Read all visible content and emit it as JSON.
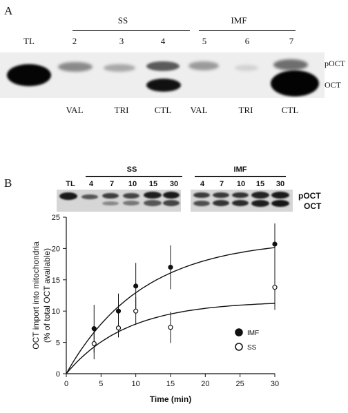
{
  "panel_a": {
    "letter": "A",
    "group_ss": "SS",
    "group_imf": "IMF",
    "lane_labels": [
      "TL",
      "2",
      "3",
      "4",
      "5",
      "6",
      "7"
    ],
    "treatments": [
      "VAL",
      "TRI",
      "CTL",
      "VAL",
      "TRI",
      "CTL"
    ],
    "band_labels": {
      "upper": "pOCT",
      "lower": "OCT"
    }
  },
  "panel_b": {
    "letter": "B",
    "gel": {
      "tl_label": "TL",
      "group_ss": "SS",
      "group_imf": "IMF",
      "lanes_ss": [
        "4",
        "7",
        "10",
        "15",
        "30"
      ],
      "lanes_imf": [
        "4",
        "7",
        "10",
        "15",
        "30"
      ],
      "band_labels": {
        "upper": "pOCT",
        "lower": "OCT"
      }
    }
  },
  "chart_data": {
    "type": "scatter",
    "title": "",
    "xlabel": "Time (min)",
    "ylabel_line1": "OCT import into mitochondria",
    "ylabel_line2": "(% of total OCT available)",
    "xlim": [
      0,
      30
    ],
    "ylim": [
      0,
      25
    ],
    "xticks": [
      "0",
      "5",
      "10",
      "15",
      "20",
      "25",
      "30"
    ],
    "yticks": [
      "0",
      "5",
      "10",
      "15",
      "20",
      "25"
    ],
    "legend_position": "right",
    "series": [
      {
        "name": "IMF",
        "marker": "filled",
        "x": [
          4,
          7.5,
          10,
          15,
          30
        ],
        "y": [
          7.2,
          10,
          14,
          17,
          20.7
        ],
        "err": [
          3.8,
          2.8,
          3.7,
          3.5,
          3.3
        ],
        "fit": {
          "amplitude": 21.5,
          "rate": 0.092
        }
      },
      {
        "name": "SS",
        "marker": "open",
        "x": [
          4,
          7.5,
          10,
          15,
          30
        ],
        "y": [
          4.8,
          7.3,
          10,
          7.4,
          13.8
        ],
        "err": [
          2.5,
          1.5,
          2.2,
          2.5,
          3.6
        ],
        "fit": {
          "amplitude": 11.6,
          "rate": 0.115
        }
      }
    ]
  }
}
